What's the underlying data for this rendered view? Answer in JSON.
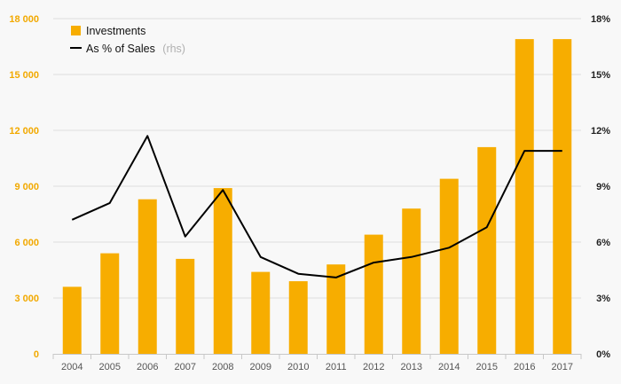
{
  "chart_data": {
    "type": "bar",
    "categories": [
      "2004",
      "2005",
      "2006",
      "2007",
      "2008",
      "2009",
      "2010",
      "2011",
      "2012",
      "2013",
      "2014",
      "2015",
      "2016",
      "2017"
    ],
    "series": [
      {
        "name": "Investments",
        "type": "bar",
        "axis": "left",
        "values": [
          3600,
          5400,
          8300,
          5100,
          8900,
          4400,
          3900,
          4800,
          6400,
          7800,
          9400,
          11100,
          16900,
          16900
        ]
      },
      {
        "name": "As % of Sales",
        "name_suffix": "(rhs)",
        "type": "line",
        "axis": "right",
        "values": [
          7.2,
          8.1,
          11.7,
          6.3,
          8.8,
          5.2,
          4.3,
          4.1,
          4.9,
          5.2,
          5.7,
          6.8,
          10.9,
          10.9
        ]
      }
    ],
    "yleft": {
      "lim": [
        0,
        18000
      ],
      "ticks": [
        "0",
        "3 000",
        "6 000",
        "9 000",
        "12 000",
        "15 000",
        "18 000"
      ],
      "tick_values": [
        0,
        3000,
        6000,
        9000,
        12000,
        15000,
        18000
      ]
    },
    "yright": {
      "lim": [
        0,
        18
      ],
      "ticks": [
        "0%",
        "3%",
        "6%",
        "9%",
        "12%",
        "15%",
        "18%"
      ],
      "tick_values": [
        0,
        3,
        6,
        9,
        12,
        15,
        18
      ]
    },
    "grid": true,
    "legend_position": "top-left",
    "colors": {
      "bar": "#f7ad00",
      "line": "#000000",
      "left_ticks": "#f2a900",
      "right_ticks": "#222222"
    }
  }
}
